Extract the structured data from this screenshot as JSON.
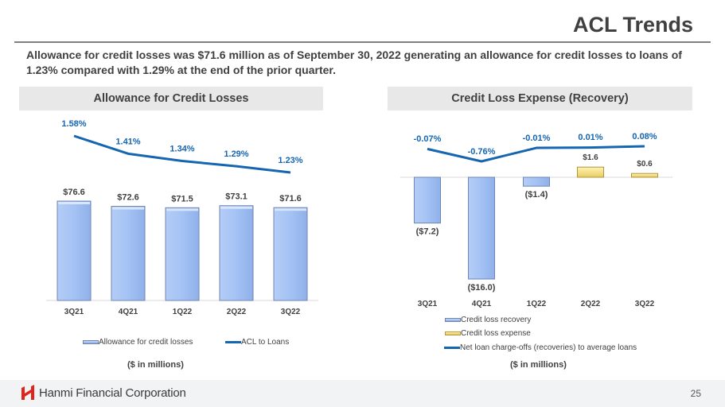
{
  "header": {
    "title": "ACL Trends",
    "summary": "Allowance for credit losses was $71.6 million as of September 30, 2022 generating an allowance for credit losses to loans of 1.23% compared with 1.29% at the end of the prior quarter."
  },
  "footer": {
    "company": "Hanmi Financial Corporation",
    "page_number": "25"
  },
  "colors": {
    "bar_blue": "#a4c2f4",
    "bar_gold": "#f3dc7c",
    "line_blue": "#1565b0",
    "text_dark": "#404040"
  },
  "chart_data": [
    {
      "type": "bar",
      "title": "Allowance for Credit Losses",
      "units_note": "($ in millions)",
      "categories": [
        "3Q21",
        "4Q21",
        "1Q22",
        "2Q22",
        "3Q22"
      ],
      "series": [
        {
          "name": "Allowance for credit losses",
          "kind": "bar",
          "values": [
            76.6,
            72.6,
            71.5,
            73.1,
            71.6
          ],
          "labels": [
            "$76.6",
            "$72.6",
            "$71.5",
            "$73.1",
            "$71.6"
          ]
        },
        {
          "name": "ACL to Loans",
          "kind": "line",
          "values": [
            1.58,
            1.41,
            1.34,
            1.29,
            1.23
          ],
          "labels": [
            "1.58%",
            "1.41%",
            "1.34%",
            "1.29%",
            "1.23%"
          ]
        }
      ],
      "legend": "bottom"
    },
    {
      "type": "bar",
      "title": "Credit Loss Expense (Recovery)",
      "units_note": "($ in millions)",
      "categories": [
        "3Q21",
        "4Q21",
        "1Q22",
        "2Q22",
        "3Q22"
      ],
      "series": [
        {
          "name": "Credit loss recovery",
          "kind": "bar",
          "values": [
            -7.2,
            -16.0,
            -1.4,
            0,
            0
          ],
          "labels": [
            "($7.2)",
            "($16.0)",
            "($1.4)",
            "",
            ""
          ]
        },
        {
          "name": "Credit loss expense",
          "kind": "bar",
          "values": [
            0,
            0,
            0,
            1.6,
            0.6
          ],
          "labels": [
            "",
            "",
            "",
            "$1.6",
            "$0.6"
          ]
        },
        {
          "name": "Net loan charge-offs (recoveries) to average loans",
          "kind": "line",
          "values": [
            -0.07,
            -0.76,
            -0.01,
            0.01,
            0.08
          ],
          "labels": [
            "-0.07%",
            "-0.76%",
            "-0.01%",
            "0.01%",
            "0.08%"
          ]
        }
      ],
      "legend": "bottom"
    }
  ]
}
